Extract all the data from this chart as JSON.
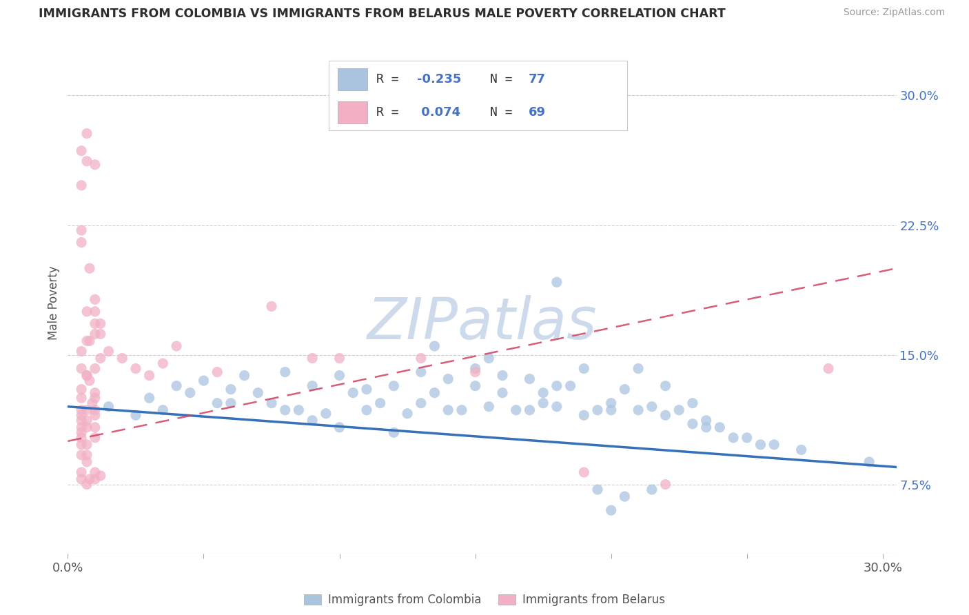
{
  "title": "IMMIGRANTS FROM COLOMBIA VS IMMIGRANTS FROM BELARUS MALE POVERTY CORRELATION CHART",
  "source_text": "Source: ZipAtlas.com",
  "ylabel": "Male Poverty",
  "xlim": [
    0.0,
    0.305
  ],
  "ylim": [
    0.035,
    0.325
  ],
  "ytick_vals": [
    0.075,
    0.15,
    0.225,
    0.3
  ],
  "ytick_labels": [
    "7.5%",
    "15.0%",
    "22.5%",
    "30.0%"
  ],
  "xtick_vals": [
    0.0,
    0.05,
    0.1,
    0.15,
    0.2,
    0.25,
    0.3
  ],
  "xtick_labels": [
    "0.0%",
    "",
    "",
    "",
    "",
    "",
    "30.0%"
  ],
  "colombia_color": "#aac4e0",
  "belarus_color": "#f2b0c4",
  "colombia_line_color": "#3570b8",
  "belarus_line_color": "#d04060",
  "R_colombia": -0.235,
  "N_colombia": 77,
  "R_belarus": 0.074,
  "N_belarus": 69,
  "watermark": "ZIPatlas",
  "watermark_color": "#ccdaec",
  "legend_colombia": "Immigrants from Colombia",
  "legend_belarus": "Immigrants from Belarus",
  "colombia_x": [
    0.015,
    0.025,
    0.03,
    0.035,
    0.04,
    0.045,
    0.05,
    0.055,
    0.06,
    0.065,
    0.07,
    0.075,
    0.08,
    0.085,
    0.09,
    0.095,
    0.1,
    0.105,
    0.11,
    0.115,
    0.12,
    0.125,
    0.13,
    0.135,
    0.14,
    0.145,
    0.15,
    0.155,
    0.16,
    0.165,
    0.17,
    0.175,
    0.18,
    0.185,
    0.19,
    0.195,
    0.2,
    0.205,
    0.21,
    0.215,
    0.22,
    0.225,
    0.23,
    0.235,
    0.24,
    0.245,
    0.25,
    0.255,
    0.26,
    0.27,
    0.06,
    0.08,
    0.09,
    0.1,
    0.11,
    0.12,
    0.13,
    0.14,
    0.15,
    0.16,
    0.17,
    0.18,
    0.19,
    0.2,
    0.21,
    0.22,
    0.23,
    0.135,
    0.155,
    0.175,
    0.195,
    0.215,
    0.235,
    0.18,
    0.205,
    0.295,
    0.2
  ],
  "colombia_y": [
    0.12,
    0.115,
    0.125,
    0.118,
    0.132,
    0.128,
    0.135,
    0.122,
    0.13,
    0.138,
    0.128,
    0.122,
    0.14,
    0.118,
    0.132,
    0.116,
    0.138,
    0.128,
    0.13,
    0.122,
    0.132,
    0.116,
    0.14,
    0.128,
    0.136,
    0.118,
    0.132,
    0.12,
    0.128,
    0.118,
    0.136,
    0.122,
    0.12,
    0.132,
    0.115,
    0.118,
    0.122,
    0.13,
    0.118,
    0.12,
    0.115,
    0.118,
    0.11,
    0.108,
    0.108,
    0.102,
    0.102,
    0.098,
    0.098,
    0.095,
    0.122,
    0.118,
    0.112,
    0.108,
    0.118,
    0.105,
    0.122,
    0.118,
    0.142,
    0.138,
    0.118,
    0.132,
    0.142,
    0.118,
    0.142,
    0.132,
    0.122,
    0.155,
    0.148,
    0.128,
    0.072,
    0.072,
    0.112,
    0.192,
    0.068,
    0.088,
    0.06
  ],
  "belarus_x": [
    0.005,
    0.008,
    0.01,
    0.005,
    0.008,
    0.012,
    0.005,
    0.007,
    0.01,
    0.005,
    0.007,
    0.009,
    0.005,
    0.007,
    0.01,
    0.005,
    0.008,
    0.01,
    0.005,
    0.007,
    0.01,
    0.005,
    0.007,
    0.01,
    0.005,
    0.007,
    0.01,
    0.005,
    0.007,
    0.005,
    0.008,
    0.01,
    0.005,
    0.007,
    0.01,
    0.012,
    0.005,
    0.007,
    0.01,
    0.012,
    0.005,
    0.007,
    0.01,
    0.005,
    0.007,
    0.01,
    0.005,
    0.007,
    0.005,
    0.007,
    0.01,
    0.012,
    0.015,
    0.02,
    0.025,
    0.03,
    0.09,
    0.15,
    0.19,
    0.22,
    0.035,
    0.04,
    0.055,
    0.075,
    0.1,
    0.13,
    0.28,
    0.01,
    0.005
  ],
  "belarus_y": [
    0.125,
    0.2,
    0.182,
    0.142,
    0.158,
    0.162,
    0.118,
    0.138,
    0.128,
    0.115,
    0.108,
    0.122,
    0.112,
    0.118,
    0.115,
    0.108,
    0.135,
    0.125,
    0.105,
    0.112,
    0.118,
    0.102,
    0.098,
    0.108,
    0.098,
    0.092,
    0.102,
    0.092,
    0.088,
    0.082,
    0.078,
    0.082,
    0.078,
    0.075,
    0.078,
    0.08,
    0.13,
    0.138,
    0.142,
    0.148,
    0.152,
    0.158,
    0.162,
    0.222,
    0.175,
    0.168,
    0.248,
    0.262,
    0.268,
    0.278,
    0.175,
    0.168,
    0.152,
    0.148,
    0.142,
    0.138,
    0.148,
    0.14,
    0.082,
    0.075,
    0.145,
    0.155,
    0.14,
    0.178,
    0.148,
    0.148,
    0.142,
    0.26,
    0.215
  ]
}
